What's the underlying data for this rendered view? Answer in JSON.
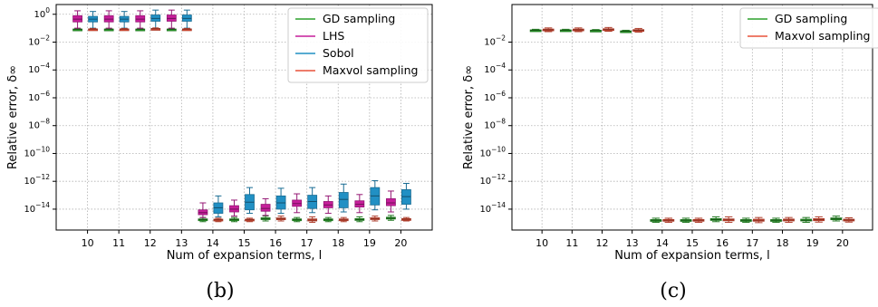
{
  "chart_data": [
    {
      "type": "box",
      "caption": "(b)",
      "xlabel": "Num of expansion terms, l",
      "ylabel": "Relative error, δ∞",
      "yscale": "log",
      "ylim_exp": [
        -15.5,
        0.7
      ],
      "yticks_exp": [
        0,
        -2,
        -4,
        -6,
        -8,
        -10,
        -12,
        -14
      ],
      "categories": [
        10,
        11,
        12,
        13,
        14,
        15,
        16,
        17,
        18,
        19,
        20
      ],
      "grid": true,
      "legend_position": "top-right",
      "series": [
        {
          "name": "GD sampling",
          "color": "#2ca02c",
          "box_exp": [
            [
              -1.15,
              -1.1,
              -1.08,
              -1.06,
              -1.02
            ],
            [
              -1.15,
              -1.1,
              -1.08,
              -1.06,
              -1.02
            ],
            [
              -1.15,
              -1.1,
              -1.08,
              -1.06,
              -1.02
            ],
            [
              -1.15,
              -1.1,
              -1.08,
              -1.06,
              -1.02
            ],
            [
              -14.9,
              -14.8,
              -14.75,
              -14.7,
              -14.6
            ],
            [
              -14.9,
              -14.8,
              -14.75,
              -14.7,
              -14.6
            ],
            [
              -14.85,
              -14.75,
              -14.7,
              -14.62,
              -14.5
            ],
            [
              -14.9,
              -14.8,
              -14.75,
              -14.7,
              -14.6
            ],
            [
              -14.9,
              -14.8,
              -14.75,
              -14.7,
              -14.6
            ],
            [
              -14.9,
              -14.8,
              -14.75,
              -14.68,
              -14.55
            ],
            [
              -14.8,
              -14.7,
              -14.65,
              -14.58,
              -14.45
            ]
          ]
        },
        {
          "name": "LHS",
          "color": "#c61e9a",
          "box_exp": [
            [
              -1.0,
              -0.55,
              -0.35,
              -0.1,
              0.25
            ],
            [
              -1.0,
              -0.55,
              -0.35,
              -0.1,
              0.25
            ],
            [
              -1.0,
              -0.55,
              -0.35,
              -0.1,
              0.25
            ],
            [
              -1.0,
              -0.5,
              -0.3,
              -0.05,
              0.3
            ],
            [
              -14.6,
              -14.4,
              -14.25,
              -14.05,
              -13.55
            ],
            [
              -14.5,
              -14.2,
              -14.0,
              -13.75,
              -13.35
            ],
            [
              -14.45,
              -14.15,
              -13.95,
              -13.65,
              -13.25
            ],
            [
              -14.25,
              -13.8,
              -13.6,
              -13.35,
              -12.9
            ],
            [
              -14.3,
              -13.9,
              -13.7,
              -13.45,
              -13.05
            ],
            [
              -14.25,
              -13.85,
              -13.65,
              -13.4,
              -12.95
            ],
            [
              -14.2,
              -13.75,
              -13.55,
              -13.25,
              -12.7
            ]
          ]
        },
        {
          "name": "Sobol",
          "color": "#2190c4",
          "box_exp": [
            [
              -1.0,
              -0.55,
              -0.35,
              -0.15,
              0.2
            ],
            [
              -1.0,
              -0.55,
              -0.35,
              -0.15,
              0.2
            ],
            [
              -1.0,
              -0.5,
              -0.3,
              -0.05,
              0.3
            ],
            [
              -1.0,
              -0.5,
              -0.3,
              -0.05,
              0.3
            ],
            [
              -14.55,
              -14.3,
              -13.9,
              -13.55,
              -13.05
            ],
            [
              -14.3,
              -14.05,
              -13.5,
              -12.95,
              -12.45
            ],
            [
              -14.3,
              -14.0,
              -13.55,
              -13.05,
              -12.5
            ],
            [
              -14.25,
              -13.95,
              -13.45,
              -13.0,
              -12.45
            ],
            [
              -14.2,
              -13.9,
              -13.3,
              -12.8,
              -12.2
            ],
            [
              -14.05,
              -13.7,
              -13.05,
              -12.45,
              -11.95
            ],
            [
              -14.0,
              -13.65,
              -13.1,
              -12.6,
              -12.15
            ]
          ]
        },
        {
          "name": "Maxvol sampling",
          "color": "#e8523a",
          "box_exp": [
            [
              -1.12,
              -1.09,
              -1.07,
              -1.05,
              -1.02
            ],
            [
              -1.12,
              -1.09,
              -1.07,
              -1.05,
              -1.02
            ],
            [
              -1.12,
              -1.08,
              -1.05,
              -1.02,
              -0.98
            ],
            [
              -1.12,
              -1.09,
              -1.07,
              -1.05,
              -1.02
            ],
            [
              -14.9,
              -14.82,
              -14.77,
              -14.72,
              -14.65
            ],
            [
              -14.9,
              -14.82,
              -14.77,
              -14.72,
              -14.65
            ],
            [
              -14.85,
              -14.76,
              -14.7,
              -14.63,
              -14.5
            ],
            [
              -14.95,
              -14.85,
              -14.78,
              -14.7,
              -14.55
            ],
            [
              -14.9,
              -14.82,
              -14.77,
              -14.7,
              -14.6
            ],
            [
              -14.85,
              -14.75,
              -14.7,
              -14.62,
              -14.5
            ],
            [
              -14.85,
              -14.78,
              -14.73,
              -14.68,
              -14.6
            ]
          ]
        }
      ]
    },
    {
      "type": "box",
      "caption": "(c)",
      "xlabel": "Num of expansion terms, l",
      "ylabel": "Relative error, δ∞",
      "yscale": "log",
      "ylim_exp": [
        -15.5,
        0.7
      ],
      "yticks_exp": [
        -2,
        -4,
        -6,
        -8,
        -10,
        -12,
        -14
      ],
      "categories": [
        10,
        11,
        12,
        13,
        14,
        15,
        16,
        17,
        18,
        19,
        20
      ],
      "grid": true,
      "legend_position": "top-right",
      "series": [
        {
          "name": "GD sampling",
          "color": "#2ca02c",
          "box_exp": [
            [
              -1.22,
              -1.18,
              -1.15,
              -1.12,
              -1.08
            ],
            [
              -1.22,
              -1.18,
              -1.15,
              -1.12,
              -1.08
            ],
            [
              -1.25,
              -1.2,
              -1.17,
              -1.14,
              -1.1
            ],
            [
              -1.3,
              -1.25,
              -1.22,
              -1.19,
              -1.15
            ],
            [
              -14.95,
              -14.85,
              -14.8,
              -14.75,
              -14.65
            ],
            [
              -14.95,
              -14.85,
              -14.8,
              -14.75,
              -14.65
            ],
            [
              -14.9,
              -14.8,
              -14.75,
              -14.68,
              -14.55
            ],
            [
              -14.95,
              -14.85,
              -14.8,
              -14.75,
              -14.65
            ],
            [
              -14.95,
              -14.85,
              -14.8,
              -14.75,
              -14.65
            ],
            [
              -14.95,
              -14.85,
              -14.8,
              -14.72,
              -14.6
            ],
            [
              -14.85,
              -14.75,
              -14.7,
              -14.63,
              -14.5
            ]
          ]
        },
        {
          "name": "Maxvol sampling",
          "color": "#e8523a",
          "box_exp": [
            [
              -1.25,
              -1.18,
              -1.12,
              -1.06,
              -0.98
            ],
            [
              -1.25,
              -1.18,
              -1.12,
              -1.06,
              -0.98
            ],
            [
              -1.22,
              -1.15,
              -1.1,
              -1.04,
              -0.95
            ],
            [
              -1.28,
              -1.2,
              -1.15,
              -1.1,
              -1.02
            ],
            [
              -14.95,
              -14.86,
              -14.8,
              -14.74,
              -14.65
            ],
            [
              -14.95,
              -14.86,
              -14.8,
              -14.74,
              -14.65
            ],
            [
              -14.95,
              -14.84,
              -14.77,
              -14.7,
              -14.55
            ],
            [
              -14.97,
              -14.87,
              -14.8,
              -14.72,
              -14.6
            ],
            [
              -14.95,
              -14.85,
              -14.78,
              -14.71,
              -14.6
            ],
            [
              -14.93,
              -14.83,
              -14.76,
              -14.68,
              -14.55
            ],
            [
              -14.93,
              -14.84,
              -14.78,
              -14.72,
              -14.62
            ]
          ]
        }
      ]
    }
  ]
}
